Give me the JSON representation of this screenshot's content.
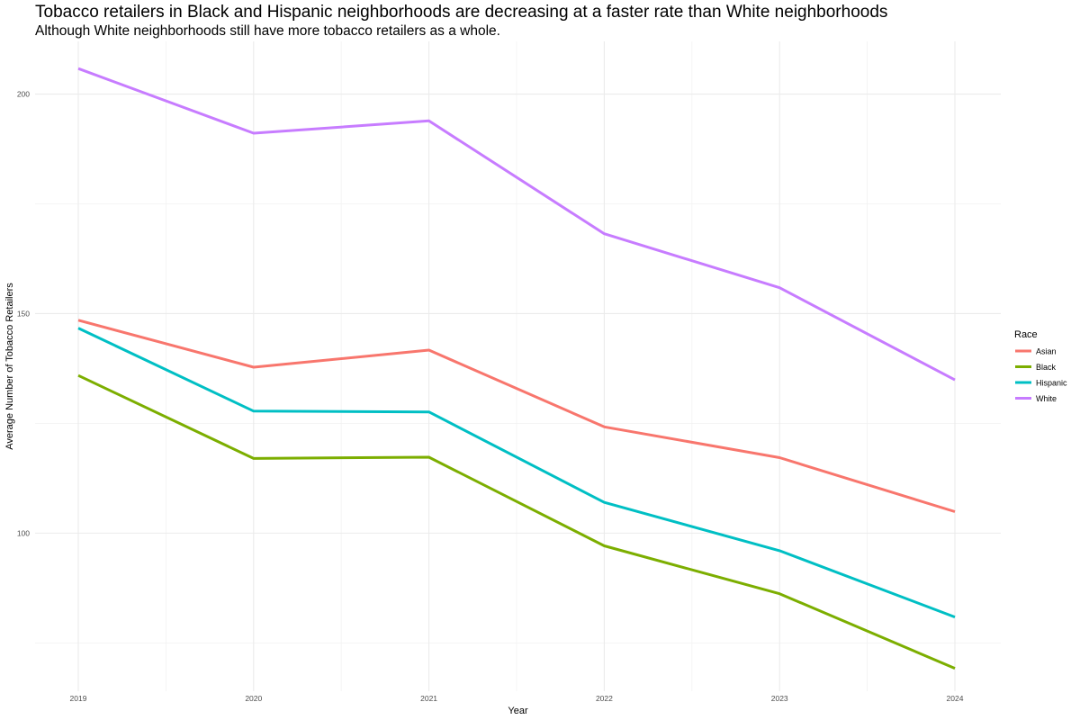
{
  "chart_data": {
    "type": "line",
    "title": "Tobacco retailers in Black and Hispanic neighborhoods are decreasing at a faster rate than White neighborhoods",
    "subtitle": "Although White neighborhoods still have more tobacco retailers as a whole.",
    "xlabel": "Year",
    "ylabel": "Average Number of Tobacco Retailers",
    "x": [
      "2019",
      "2020",
      "2021",
      "2022",
      "2023",
      "2024"
    ],
    "ylim": [
      64,
      212
    ],
    "y_ticks": [
      100,
      150,
      200
    ],
    "y_minor_ticks": [
      75,
      125,
      175
    ],
    "grid": true,
    "legend": {
      "title": "Race",
      "position": "right"
    },
    "series": [
      {
        "name": "Asian",
        "color": "#F8766D",
        "values": [
          148.5,
          137.8,
          141.7,
          124.2,
          117.2,
          104.9
        ]
      },
      {
        "name": "Black",
        "color": "#7CAE00",
        "values": [
          135.9,
          117.0,
          117.3,
          97.1,
          86.2,
          69.2
        ]
      },
      {
        "name": "Hispanic",
        "color": "#00BFC4",
        "values": [
          146.7,
          127.8,
          127.6,
          107.0,
          96.0,
          80.9
        ]
      },
      {
        "name": "White",
        "color": "#C77CFF",
        "values": [
          205.8,
          191.1,
          193.9,
          168.2,
          155.9,
          134.9
        ]
      }
    ]
  }
}
